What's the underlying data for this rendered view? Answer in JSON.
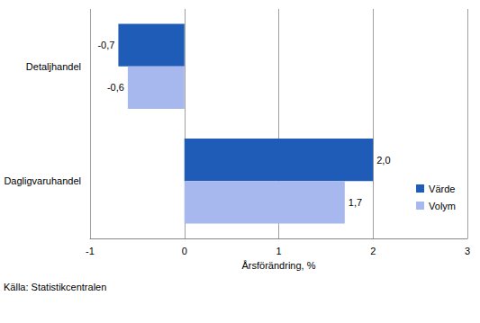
{
  "chart_data": {
    "type": "bar",
    "orientation": "horizontal",
    "categories": [
      "Detaljhandel",
      "Dagligvaruhandel"
    ],
    "series": [
      {
        "name": "Värde",
        "color": "#1f5cb8",
        "values": [
          -0.7,
          2.0
        ],
        "value_labels": [
          "-0,7",
          "2,0"
        ]
      },
      {
        "name": "Volym",
        "color": "#a6b8ee",
        "values": [
          -0.6,
          1.7
        ],
        "value_labels": [
          "-0,6",
          "1,7"
        ]
      }
    ],
    "xlabel": "Årsförändring, %",
    "xlim": [
      -1,
      3
    ],
    "xticks": [
      -1,
      0,
      1,
      2,
      3
    ],
    "grid": true,
    "legend": "lower right",
    "data_labels": true,
    "source": "Källa: Statistikcentralen"
  }
}
